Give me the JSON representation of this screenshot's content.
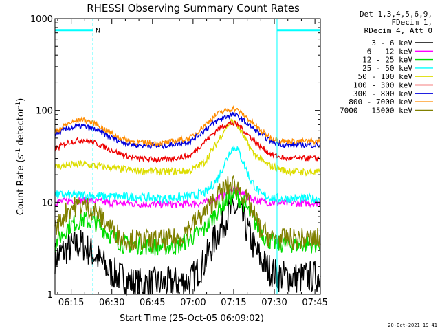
{
  "chart_data": {
    "type": "line",
    "title": "RHESSI Observing Summary Count Rates",
    "xlabel": "Start Time (25-Oct-05 06:09:02)",
    "ylabel_main": "Count Rate (s",
    "ylabel_sup1": "-1",
    "ylabel_mid": " detector",
    "ylabel_sup2": "-1",
    "ylabel_end": ")",
    "yscale": "log",
    "xlim_minutes": [
      0,
      98
    ],
    "ylim": [
      1,
      1000
    ],
    "xticks": [
      {
        "label": "06:15",
        "t": 6
      },
      {
        "label": "06:30",
        "t": 21
      },
      {
        "label": "06:45",
        "t": 36
      },
      {
        "label": "07:00",
        "t": 51
      },
      {
        "label": "07:15",
        "t": 66
      },
      {
        "label": "07:30",
        "t": 81
      },
      {
        "label": "07:45",
        "t": 96
      }
    ],
    "yticks": [
      {
        "label": "1",
        "value": 1
      },
      {
        "label": "10",
        "value": 10
      },
      {
        "label": "100",
        "value": 100
      },
      {
        "label": "1000",
        "value": 1000
      }
    ],
    "legend_header": [
      "Det 1,3,4,5,6,9,",
      "FDecim 1,",
      "RDecim 4, Att 0"
    ],
    "legend_position": "right",
    "series": [
      {
        "name": "3 - 6 keV",
        "color": "#000000",
        "points": [
          [
            0,
            2.5
          ],
          [
            5,
            3.2
          ],
          [
            10,
            3.5
          ],
          [
            15,
            2.6
          ],
          [
            20,
            1.8
          ],
          [
            25,
            1.5
          ],
          [
            30,
            1.3
          ],
          [
            40,
            1.3
          ],
          [
            50,
            1.4
          ],
          [
            55,
            2.2
          ],
          [
            60,
            4.5
          ],
          [
            64,
            7.5
          ],
          [
            66,
            8.5
          ],
          [
            68,
            8
          ],
          [
            70,
            6
          ],
          [
            74,
            3
          ],
          [
            78,
            2
          ],
          [
            82,
            1.6
          ],
          [
            90,
            1.5
          ],
          [
            98,
            1.6
          ]
        ]
      },
      {
        "name": "6 - 12 keV",
        "color": "#ff00ff",
        "points": [
          [
            0,
            10
          ],
          [
            6,
            10.5
          ],
          [
            12,
            10.5
          ],
          [
            18,
            10
          ],
          [
            25,
            9.8
          ],
          [
            35,
            9.5
          ],
          [
            45,
            9.5
          ],
          [
            55,
            9.8
          ],
          [
            60,
            11
          ],
          [
            64,
            13
          ],
          [
            66,
            14
          ],
          [
            68,
            13
          ],
          [
            72,
            11
          ],
          [
            78,
            10
          ],
          [
            85,
            9.8
          ],
          [
            98,
            9.8
          ]
        ]
      },
      {
        "name": "12 - 25 keV",
        "color": "#00dd00",
        "points": [
          [
            0,
            3.5
          ],
          [
            5,
            5.5
          ],
          [
            10,
            6.5
          ],
          [
            15,
            6
          ],
          [
            20,
            4.5
          ],
          [
            25,
            3.5
          ],
          [
            35,
            3.3
          ],
          [
            45,
            3.3
          ],
          [
            55,
            5
          ],
          [
            60,
            8
          ],
          [
            64,
            11
          ],
          [
            66,
            12
          ],
          [
            68,
            11
          ],
          [
            70,
            9.5
          ],
          [
            74,
            6
          ],
          [
            78,
            4
          ],
          [
            82,
            3.5
          ],
          [
            98,
            3.5
          ]
        ]
      },
      {
        "name": "25 - 50 keV",
        "color": "#00ffff",
        "points": [
          [
            0,
            12
          ],
          [
            10,
            12
          ],
          [
            20,
            11.5
          ],
          [
            30,
            11.5
          ],
          [
            40,
            11
          ],
          [
            50,
            11.5
          ],
          [
            56,
            13
          ],
          [
            60,
            18
          ],
          [
            63,
            28
          ],
          [
            65,
            38
          ],
          [
            67,
            40
          ],
          [
            69,
            30
          ],
          [
            72,
            18
          ],
          [
            76,
            12
          ],
          [
            82,
            11
          ],
          [
            98,
            11
          ]
        ]
      },
      {
        "name": "50 - 100 keV",
        "color": "#dddd00",
        "points": [
          [
            0,
            24
          ],
          [
            5,
            25.5
          ],
          [
            10,
            26
          ],
          [
            15,
            25
          ],
          [
            20,
            24
          ],
          [
            30,
            22
          ],
          [
            40,
            21.5
          ],
          [
            50,
            22
          ],
          [
            55,
            27
          ],
          [
            60,
            45
          ],
          [
            63,
            65
          ],
          [
            65,
            75
          ],
          [
            67,
            72
          ],
          [
            70,
            50
          ],
          [
            73,
            35
          ],
          [
            78,
            26
          ],
          [
            85,
            22
          ],
          [
            98,
            21
          ]
        ]
      },
      {
        "name": "100 - 300 keV",
        "color": "#ee0000",
        "points": [
          [
            0,
            38
          ],
          [
            5,
            45
          ],
          [
            10,
            48
          ],
          [
            15,
            44
          ],
          [
            20,
            38
          ],
          [
            25,
            33
          ],
          [
            30,
            30
          ],
          [
            40,
            29
          ],
          [
            50,
            32
          ],
          [
            55,
            45
          ],
          [
            60,
            62
          ],
          [
            64,
            72
          ],
          [
            66,
            72
          ],
          [
            68,
            68
          ],
          [
            72,
            52
          ],
          [
            76,
            40
          ],
          [
            80,
            33
          ],
          [
            85,
            30
          ],
          [
            98,
            30
          ]
        ]
      },
      {
        "name": "300 - 800 keV",
        "color": "#0000dd",
        "points": [
          [
            0,
            55
          ],
          [
            5,
            64
          ],
          [
            10,
            68
          ],
          [
            15,
            62
          ],
          [
            20,
            52
          ],
          [
            25,
            45
          ],
          [
            30,
            42
          ],
          [
            40,
            41
          ],
          [
            50,
            46
          ],
          [
            55,
            60
          ],
          [
            60,
            78
          ],
          [
            64,
            88
          ],
          [
            66,
            90
          ],
          [
            68,
            85
          ],
          [
            72,
            68
          ],
          [
            76,
            55
          ],
          [
            80,
            46
          ],
          [
            85,
            42
          ],
          [
            98,
            42
          ]
        ]
      },
      {
        "name": "800 - 7000 keV",
        "color": "#ff8c00",
        "points": [
          [
            0,
            58
          ],
          [
            5,
            72
          ],
          [
            10,
            80
          ],
          [
            15,
            72
          ],
          [
            20,
            58
          ],
          [
            25,
            49
          ],
          [
            30,
            45
          ],
          [
            40,
            44
          ],
          [
            50,
            50
          ],
          [
            55,
            68
          ],
          [
            60,
            92
          ],
          [
            64,
            102
          ],
          [
            66,
            105
          ],
          [
            68,
            98
          ],
          [
            72,
            78
          ],
          [
            76,
            60
          ],
          [
            80,
            50
          ],
          [
            85,
            46
          ],
          [
            98,
            46
          ]
        ]
      },
      {
        "name": "7000 - 15000 keV",
        "color": "#808000",
        "points": [
          [
            0,
            5
          ],
          [
            5,
            8.5
          ],
          [
            10,
            9.5
          ],
          [
            15,
            8
          ],
          [
            20,
            5.5
          ],
          [
            25,
            4
          ],
          [
            35,
            3.8
          ],
          [
            45,
            4
          ],
          [
            55,
            7.5
          ],
          [
            60,
            12
          ],
          [
            64,
            15
          ],
          [
            66,
            15.5
          ],
          [
            68,
            14
          ],
          [
            72,
            9
          ],
          [
            76,
            5
          ],
          [
            80,
            4
          ],
          [
            98,
            4
          ]
        ]
      }
    ],
    "annotations": {
      "night_label": "N",
      "night_level": 750,
      "night_spans_minutes": [
        [
          0,
          14
        ],
        [
          82,
          98
        ]
      ],
      "boundaries_minutes": [
        0,
        14,
        82,
        98
      ]
    }
  },
  "timestamp": "20-Oct-2021 19:41",
  "colors": {
    "cyan": "#00ffff"
  }
}
